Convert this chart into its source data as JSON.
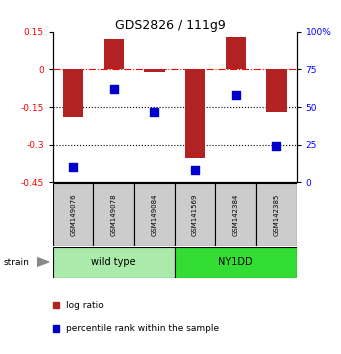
{
  "title": "GDS2826 / 111g9",
  "samples": [
    "GSM149076",
    "GSM149078",
    "GSM149084",
    "GSM141569",
    "GSM142384",
    "GSM142385"
  ],
  "log_ratio": [
    -0.19,
    0.12,
    -0.012,
    -0.355,
    0.13,
    -0.17
  ],
  "percentile_rank": [
    10,
    62,
    47,
    8,
    58,
    24
  ],
  "ylim_left": [
    -0.45,
    0.15
  ],
  "ylim_right": [
    0,
    100
  ],
  "yticks_left": [
    0.15,
    0.0,
    -0.15,
    -0.3,
    -0.45
  ],
  "yticks_right": [
    100,
    75,
    50,
    25,
    0
  ],
  "hlines_dotted": [
    -0.15,
    -0.3
  ],
  "hline_dashdot": 0.0,
  "bar_color": "#b22222",
  "dot_color": "#0000cc",
  "bar_width": 0.5,
  "dot_size": 28,
  "wild_type_indices": [
    0,
    1,
    2
  ],
  "ny1dd_indices": [
    3,
    4,
    5
  ],
  "wild_type_label": "wild type",
  "ny1dd_label": "NY1DD",
  "wild_type_color": "#aaeaaa",
  "ny1dd_color": "#33dd33",
  "sample_box_color": "#cccccc",
  "legend_log_ratio": "log ratio",
  "legend_percentile": "percentile rank within the sample",
  "strain_label": "strain"
}
